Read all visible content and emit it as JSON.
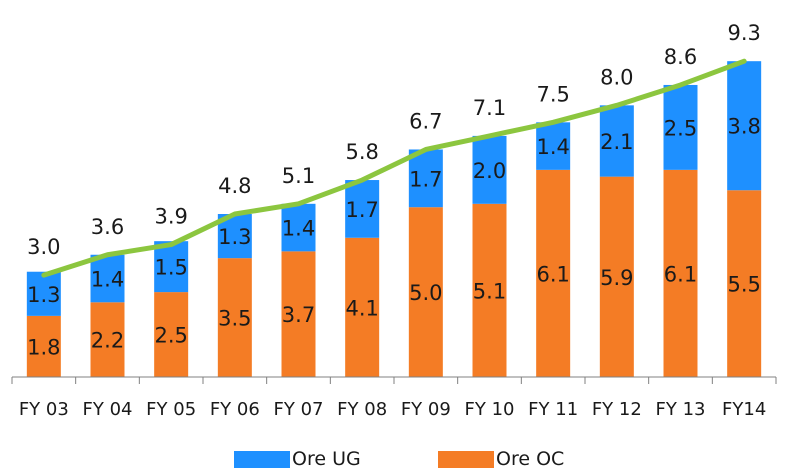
{
  "chart_data": {
    "type": "bar",
    "stacked": true,
    "categories": [
      "FY 03",
      "FY 04",
      "FY 05",
      "FY 06",
      "FY 07",
      "FY 08",
      "FY 09",
      "FY 10",
      "FY 11",
      "FY 12",
      "FY 13",
      "FY14"
    ],
    "series": [
      {
        "name": "Ore OC",
        "color": "#f47c25",
        "values": [
          1.8,
          2.2,
          2.5,
          3.5,
          3.7,
          4.1,
          5.0,
          5.1,
          6.1,
          5.9,
          6.1,
          5.5
        ],
        "labels": [
          "1.8",
          "2.2",
          "2.5",
          "3.5",
          "3.7",
          "4.1",
          "5.0",
          "5.1",
          "6.1",
          "5.9",
          "6.1",
          "5.5"
        ]
      },
      {
        "name": "Ore UG",
        "color": "#1e90ff",
        "values": [
          1.3,
          1.4,
          1.5,
          1.3,
          1.4,
          1.7,
          1.7,
          2.0,
          1.4,
          2.1,
          2.5,
          3.8
        ],
        "labels": [
          "1.3",
          "1.4",
          "1.5",
          "1.3",
          "1.4",
          "1.7",
          "1.7",
          "2.0",
          "1.4",
          "2.1",
          "2.5",
          "3.8"
        ]
      }
    ],
    "total_line": {
      "color": "#8cc63f",
      "values": [
        3.0,
        3.6,
        3.9,
        4.8,
        5.1,
        5.8,
        6.7,
        7.1,
        7.5,
        8.0,
        8.6,
        9.3
      ],
      "labels": [
        "3.0",
        "3.6",
        "3.9",
        "4.8",
        "5.1",
        "5.8",
        "6.7",
        "7.1",
        "7.5",
        "8.0",
        "8.6",
        "9.3"
      ]
    },
    "ylim": [
      0,
      9.6
    ],
    "grid": false,
    "legend": "bottom",
    "title": "",
    "xlabel": "",
    "ylabel": ""
  },
  "legend": {
    "items": [
      {
        "label": "Ore UG",
        "color": "#1e90ff"
      },
      {
        "label": "Ore OC",
        "color": "#f47c25"
      }
    ]
  }
}
